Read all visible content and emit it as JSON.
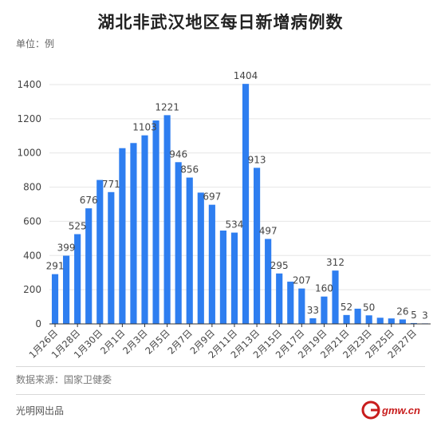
{
  "header": {
    "title": "湖北非武汉地区每日新增病例数",
    "unit": "单位：例"
  },
  "footer": {
    "source": "数据来源：国家卫健委",
    "credit": "光明网出品",
    "logo_text": "gmw.cn"
  },
  "colors": {
    "bar": "#2e7ef0",
    "grid": "#e6e6e6",
    "axis": "#333333",
    "label": "#444444"
  },
  "chart_data": {
    "type": "bar",
    "title": "湖北非武汉地区每日新增病例数",
    "ylabel": "单位：例",
    "ylim": [
      0,
      1400
    ],
    "yticks": [
      0,
      200,
      400,
      600,
      800,
      1000,
      1200,
      1400
    ],
    "grid": true,
    "categories": [
      "1月26日",
      "1月27日",
      "1月28日",
      "1月29日",
      "1月30日",
      "1月31日",
      "2月1日",
      "2月2日",
      "2月3日",
      "2月4日",
      "2月5日",
      "2月6日",
      "2月7日",
      "2月8日",
      "2月9日",
      "2月10日",
      "2月11日",
      "2月12日",
      "2月13日",
      "2月14日",
      "2月15日",
      "2月16日",
      "2月17日",
      "2月18日",
      "2月19日",
      "2月20日",
      "2月21日",
      "2月22日",
      "2月23日",
      "2月24日",
      "2月25日",
      "2月26日",
      "2月27日",
      "2月28日"
    ],
    "xtick_labels": [
      "1月26日",
      "",
      "1月28日",
      "",
      "1月30日",
      "",
      "2月1日",
      "",
      "2月3日",
      "",
      "2月5日",
      "",
      "2月7日",
      "",
      "2月9日",
      "",
      "2月11日",
      "",
      "2月13日",
      "",
      "2月15日",
      "",
      "2月17日",
      "",
      "2月19日",
      "",
      "2月21日",
      "",
      "2月23日",
      "",
      "2月25日",
      "",
      "2月27日",
      ""
    ],
    "values": [
      291,
      399,
      525,
      676,
      842,
      771,
      1028,
      1058,
      1103,
      1190,
      1221,
      946,
      856,
      768,
      697,
      546,
      534,
      1404,
      913,
      497,
      295,
      247,
      207,
      33,
      160,
      312,
      52,
      89,
      50,
      36,
      32,
      26,
      5,
      3
    ],
    "data_labels": [
      "291",
      "399",
      "525",
      "676",
      "",
      "771",
      "",
      "",
      "1103",
      "",
      "1221",
      "946",
      "856",
      "",
      "697",
      "",
      "534",
      "1404",
      "913",
      "497",
      "295",
      "",
      "207",
      "33",
      "160",
      "312",
      "52",
      "",
      "50",
      "",
      "",
      "26",
      "5",
      "3"
    ]
  }
}
